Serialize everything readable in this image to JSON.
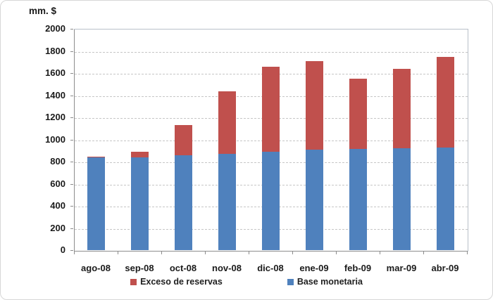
{
  "chart_data": {
    "type": "bar",
    "stacked": true,
    "unit_label": "mm. $",
    "categories": [
      "ago-08",
      "sep-08",
      "oct-08",
      "nov-08",
      "dic-08",
      "ene-09",
      "feb-09",
      "mar-09",
      "abr-09"
    ],
    "series": [
      {
        "name": "Base monetaria",
        "color": "#4f81bd",
        "values": [
          835,
          840,
          855,
          870,
          890,
          910,
          915,
          920,
          925
        ]
      },
      {
        "name": "Exceso de reservas",
        "color": "#c0504d",
        "values": [
          10,
          50,
          275,
          565,
          770,
          795,
          635,
          715,
          820
        ]
      }
    ],
    "totals": [
      845,
      890,
      1130,
      1435,
      1660,
      1705,
      1550,
      1635,
      1745
    ],
    "ylim": [
      0,
      2000
    ],
    "ytick_step": 200,
    "yticks": [
      0,
      200,
      400,
      600,
      800,
      1000,
      1200,
      1400,
      1600,
      1800,
      2000
    ],
    "grid": "horizontal-dashed",
    "legend_position": "bottom",
    "legend": [
      {
        "label": "Exceso de reservas",
        "color": "#c0504d"
      },
      {
        "label": "Base monetaria",
        "color": "#4f81bd"
      }
    ]
  },
  "colors": {
    "bar_blue": "#4f81bd",
    "bar_red": "#c0504d",
    "gridline": "#c6c6c6",
    "axis": "#8c8c8c",
    "plot_border": "#b9c0c9",
    "frame_border": "#d7d7d7",
    "text": "#1a1a1a"
  }
}
